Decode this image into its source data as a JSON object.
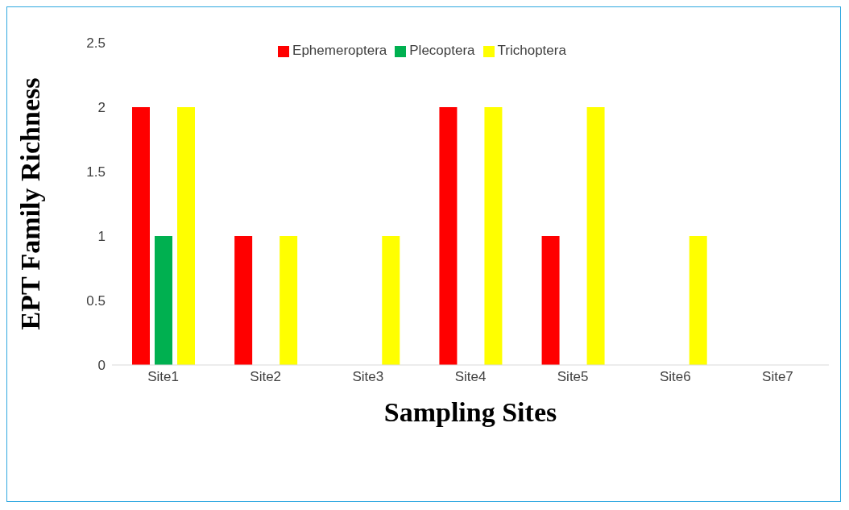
{
  "chart_data": {
    "type": "bar",
    "xlabel": "Sampling Sites",
    "ylabel": "EPT Family Richness",
    "categories": [
      "Site1",
      "Site2",
      "Site3",
      "Site4",
      "Site5",
      "Site6",
      "Site7"
    ],
    "series": [
      {
        "name": "Ephemeroptera",
        "color": "#ff0000",
        "values": [
          2,
          1,
          0,
          2,
          1,
          0,
          0
        ]
      },
      {
        "name": "Plecoptera",
        "color": "#00b050",
        "values": [
          1,
          0,
          0,
          0,
          0,
          0,
          0
        ]
      },
      {
        "name": "Trichoptera",
        "color": "#ffff00",
        "values": [
          2,
          1,
          1,
          2,
          2,
          1,
          0
        ]
      }
    ],
    "ylim": [
      0,
      2.5
    ],
    "yticks": [
      0,
      0.5,
      1,
      1.5,
      2,
      2.5
    ],
    "grid": false,
    "legend": "top"
  }
}
